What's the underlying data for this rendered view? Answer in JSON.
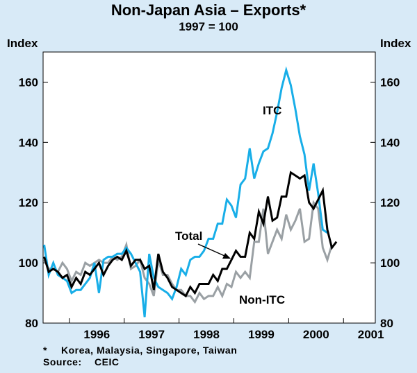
{
  "chart_data": {
    "type": "line",
    "title": "Non-Japan Asia – Exports*",
    "subtitle": "1997 = 100",
    "ylabel_left": "Index",
    "ylabel_right": "Index",
    "ylim": [
      80,
      170
    ],
    "yticks": [
      80,
      100,
      120,
      140,
      160
    ],
    "xlim": [
      1995.52,
      2001.58
    ],
    "xticks": [
      {
        "label": "1996",
        "pos": 1996.5
      },
      {
        "label": "1997",
        "pos": 1997.5
      },
      {
        "label": "1998",
        "pos": 1998.5
      },
      {
        "label": "1999",
        "pos": 1999.5
      },
      {
        "label": "2000",
        "pos": 2000.5
      },
      {
        "label": "2001",
        "pos": 2001.5
      }
    ],
    "year_boundaries": [
      1996,
      1997,
      1998,
      1999,
      2000,
      2001
    ],
    "x_start": 1995.54,
    "x_step": 0.0833,
    "series": [
      {
        "name": "ITC",
        "color": "#18aee8",
        "values": [
          106,
          96,
          100,
          96,
          95,
          94,
          90,
          91,
          91,
          93,
          95,
          100,
          90,
          101,
          102,
          102,
          103,
          103,
          105,
          103,
          100,
          97,
          82,
          103,
          95,
          92,
          91,
          90,
          88,
          92,
          98,
          96,
          101,
          102,
          102,
          104,
          108,
          108,
          113,
          113,
          121,
          119,
          115,
          126,
          128,
          138,
          128,
          133,
          137,
          138,
          143,
          150,
          158,
          164,
          159,
          151,
          142,
          136,
          124,
          133,
          123,
          111,
          110
        ]
      },
      {
        "name": "Total",
        "color": "#000000",
        "values": [
          102,
          97,
          98,
          97,
          95,
          96,
          92,
          95,
          93,
          97,
          96,
          98,
          100,
          96,
          99,
          101,
          102,
          101,
          104,
          99,
          101,
          101,
          98,
          99,
          91,
          103,
          97,
          95,
          92,
          91,
          90,
          89,
          92,
          90,
          93,
          93,
          93,
          96,
          94,
          98,
          98,
          101,
          104,
          102,
          102,
          110,
          108,
          117,
          113,
          122,
          114,
          115,
          122,
          122,
          130,
          129,
          128,
          129,
          120,
          118,
          121,
          124,
          111,
          105,
          107
        ]
      },
      {
        "name": "Non-ITC",
        "color": "#9aa0a4",
        "values": [
          101,
          98,
          98,
          97,
          100,
          98,
          94,
          97,
          96,
          100,
          99,
          100,
          101,
          100,
          100,
          102,
          101,
          102,
          106,
          98,
          99,
          101,
          95,
          93,
          89,
          101,
          96,
          96,
          93,
          91,
          91,
          89,
          89,
          87,
          90,
          88,
          89,
          89,
          92,
          89,
          93,
          92,
          97,
          95,
          97,
          95,
          107,
          107,
          118,
          103,
          107,
          111,
          108,
          116,
          111,
          114,
          118,
          107,
          108,
          120,
          118,
          105,
          101,
          106
        ]
      }
    ],
    "annotations": [
      {
        "text": "ITC"
      },
      {
        "text": "Total"
      },
      {
        "text": "Non-ITC"
      }
    ]
  },
  "footnote": {
    "mark": "*",
    "text": "Korea, Malaysia, Singapore, Taiwan"
  },
  "source": {
    "label": "Source:",
    "text": "CEIC"
  }
}
